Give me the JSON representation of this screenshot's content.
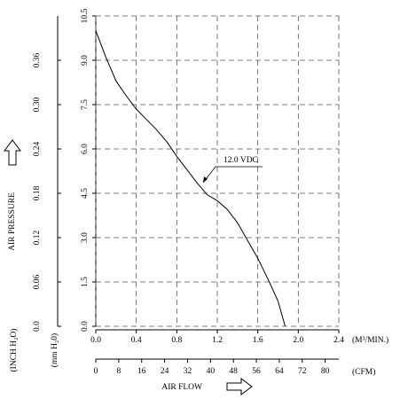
{
  "chart_data": {
    "type": "line",
    "x_label": "AIR FLOW",
    "x_unit_label": "(M³/MIN.)",
    "x2_unit_label": "(CFM)",
    "y_label": "AIR PRESSURE",
    "y_unit_label": "(mm H₂0)",
    "y2_unit_label": "(INCH H₂O)",
    "xlim": [
      0,
      2.4
    ],
    "xticks": [
      {
        "value": 0,
        "label": "0.0"
      },
      0.4,
      0.8,
      1.2,
      1.6,
      {
        "value": 2,
        "label": "2.0"
      },
      2.4
    ],
    "x2lim": [
      0,
      84.75
    ],
    "x2ticks": [
      0,
      8,
      16,
      24,
      32,
      40,
      48,
      56,
      64,
      72,
      80
    ],
    "ylim": [
      0,
      10.5
    ],
    "yticks": [
      {
        "value": 0,
        "label": "0.0"
      },
      1.5,
      {
        "value": 3,
        "label": "3.0"
      },
      4.5,
      {
        "value": 6,
        "label": "6.0"
      },
      7.5,
      {
        "value": 9,
        "label": "9.0"
      },
      10.5
    ],
    "y2lim": [
      0,
      0.42
    ],
    "y2ticks": [
      {
        "value": 0,
        "label": "0.0"
      },
      0.06,
      0.12,
      0.18,
      0.24,
      {
        "value": 0.3,
        "label": "0.30"
      },
      0.36
    ],
    "grid": true,
    "series": [
      {
        "name": "12.0 VDC",
        "color": "#000000",
        "x": [
          0,
          0.1,
          0.2,
          0.3,
          0.4,
          0.5,
          0.6,
          0.7,
          0.8,
          0.9,
          1.0,
          1.1,
          1.2,
          1.3,
          1.4,
          1.5,
          1.6,
          1.7,
          1.8,
          1.87
        ],
        "values": [
          10.0,
          9.1,
          8.3,
          7.8,
          7.35,
          7.0,
          6.65,
          6.25,
          5.75,
          5.3,
          4.85,
          4.45,
          4.25,
          3.95,
          3.5,
          2.9,
          2.3,
          1.6,
          0.85,
          0
        ]
      }
    ]
  }
}
